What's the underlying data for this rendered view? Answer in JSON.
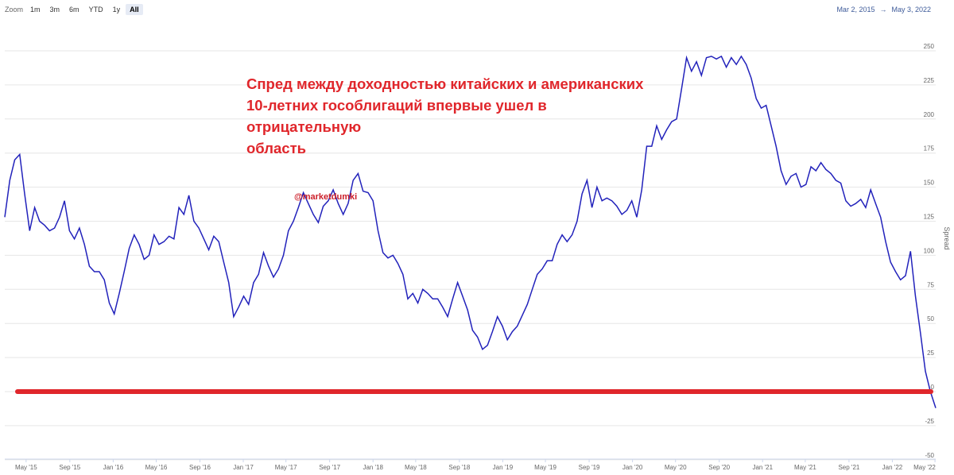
{
  "toolbar": {
    "zoom_label": "Zoom",
    "buttons": [
      "1m",
      "3m",
      "6m",
      "YTD",
      "1y",
      "All"
    ],
    "active": "All"
  },
  "range": {
    "from": "Mar 2, 2015",
    "arrow": "→",
    "to": "May 3, 2022"
  },
  "annotation": {
    "headline_lines": [
      "Спред между доходностью китайских и американских",
      "10-летних гособлигаций впервые ушел в отрицательную",
      "область"
    ],
    "watermark": "@marketdumki"
  },
  "colors": {
    "series": "#2222bb",
    "zero_line": "#e0262b",
    "headline": "#e0262b",
    "range_text": "#3d5a99"
  },
  "chart_data": {
    "type": "line",
    "ylabel": "Spread",
    "ylim": [
      -50,
      260
    ],
    "yticks": [
      -50,
      -25,
      0,
      25,
      50,
      75,
      100,
      125,
      150,
      175,
      200,
      225,
      250
    ],
    "x_start": "2015-03-02",
    "x_end": "2022-05-03",
    "xticks": [
      {
        "date": "2015-05-01",
        "label": "May '15"
      },
      {
        "date": "2015-09-01",
        "label": "Sep '15"
      },
      {
        "date": "2016-01-01",
        "label": "Jan '16"
      },
      {
        "date": "2016-05-01",
        "label": "May '16"
      },
      {
        "date": "2016-09-01",
        "label": "Sep '16"
      },
      {
        "date": "2017-01-01",
        "label": "Jan '17"
      },
      {
        "date": "2017-05-01",
        "label": "May '17"
      },
      {
        "date": "2017-09-01",
        "label": "Sep '17"
      },
      {
        "date": "2018-01-01",
        "label": "Jan '18"
      },
      {
        "date": "2018-05-01",
        "label": "May '18"
      },
      {
        "date": "2018-09-01",
        "label": "Sep '18"
      },
      {
        "date": "2019-01-01",
        "label": "Jan '19"
      },
      {
        "date": "2019-05-01",
        "label": "May '19"
      },
      {
        "date": "2019-09-01",
        "label": "Sep '19"
      },
      {
        "date": "2020-01-01",
        "label": "Jan '20"
      },
      {
        "date": "2020-05-01",
        "label": "May '20"
      },
      {
        "date": "2020-09-01",
        "label": "Sep '20"
      },
      {
        "date": "2021-01-01",
        "label": "Jan '21"
      },
      {
        "date": "2021-05-01",
        "label": "May '21"
      },
      {
        "date": "2021-09-01",
        "label": "Sep '21"
      },
      {
        "date": "2022-01-01",
        "label": "Jan '22"
      },
      {
        "date": "2022-05-01",
        "label": "May '22"
      }
    ],
    "reference_line": {
      "y": 0
    },
    "series": [
      {
        "points": [
          [
            "2015-03-02",
            128
          ],
          [
            "2015-03-16",
            155
          ],
          [
            "2015-03-30",
            170
          ],
          [
            "2015-04-13",
            174
          ],
          [
            "2015-04-27",
            145
          ],
          [
            "2015-05-11",
            118
          ],
          [
            "2015-05-25",
            135
          ],
          [
            "2015-06-08",
            125
          ],
          [
            "2015-06-22",
            122
          ],
          [
            "2015-07-06",
            118
          ],
          [
            "2015-07-20",
            120
          ],
          [
            "2015-08-03",
            128
          ],
          [
            "2015-08-17",
            140
          ],
          [
            "2015-08-31",
            118
          ],
          [
            "2015-09-14",
            112
          ],
          [
            "2015-09-28",
            120
          ],
          [
            "2015-10-12",
            108
          ],
          [
            "2015-10-26",
            92
          ],
          [
            "2015-11-09",
            88
          ],
          [
            "2015-11-23",
            88
          ],
          [
            "2015-12-07",
            82
          ],
          [
            "2015-12-21",
            65
          ],
          [
            "2016-01-04",
            57
          ],
          [
            "2016-01-18",
            72
          ],
          [
            "2016-02-01",
            88
          ],
          [
            "2016-02-15",
            105
          ],
          [
            "2016-02-29",
            115
          ],
          [
            "2016-03-14",
            108
          ],
          [
            "2016-03-28",
            97
          ],
          [
            "2016-04-11",
            100
          ],
          [
            "2016-04-25",
            115
          ],
          [
            "2016-05-09",
            108
          ],
          [
            "2016-05-23",
            110
          ],
          [
            "2016-06-06",
            114
          ],
          [
            "2016-06-20",
            112
          ],
          [
            "2016-07-04",
            135
          ],
          [
            "2016-07-18",
            130
          ],
          [
            "2016-08-01",
            144
          ],
          [
            "2016-08-15",
            125
          ],
          [
            "2016-08-29",
            120
          ],
          [
            "2016-09-12",
            112
          ],
          [
            "2016-09-26",
            104
          ],
          [
            "2016-10-10",
            114
          ],
          [
            "2016-10-24",
            110
          ],
          [
            "2016-11-07",
            95
          ],
          [
            "2016-11-21",
            80
          ],
          [
            "2016-12-05",
            55
          ],
          [
            "2016-12-19",
            62
          ],
          [
            "2017-01-02",
            70
          ],
          [
            "2017-01-16",
            64
          ],
          [
            "2017-01-30",
            80
          ],
          [
            "2017-02-13",
            86
          ],
          [
            "2017-02-27",
            102
          ],
          [
            "2017-03-13",
            92
          ],
          [
            "2017-03-27",
            84
          ],
          [
            "2017-04-10",
            90
          ],
          [
            "2017-04-24",
            100
          ],
          [
            "2017-05-08",
            118
          ],
          [
            "2017-05-22",
            125
          ],
          [
            "2017-06-05",
            135
          ],
          [
            "2017-06-19",
            146
          ],
          [
            "2017-07-03",
            138
          ],
          [
            "2017-07-17",
            130
          ],
          [
            "2017-07-31",
            124
          ],
          [
            "2017-08-14",
            136
          ],
          [
            "2017-08-28",
            140
          ],
          [
            "2017-09-11",
            148
          ],
          [
            "2017-09-25",
            138
          ],
          [
            "2017-10-09",
            130
          ],
          [
            "2017-10-23",
            138
          ],
          [
            "2017-11-06",
            155
          ],
          [
            "2017-11-20",
            160
          ],
          [
            "2017-12-04",
            147
          ],
          [
            "2017-12-18",
            146
          ],
          [
            "2018-01-01",
            140
          ],
          [
            "2018-01-15",
            118
          ],
          [
            "2018-01-29",
            102
          ],
          [
            "2018-02-12",
            98
          ],
          [
            "2018-02-26",
            100
          ],
          [
            "2018-03-12",
            94
          ],
          [
            "2018-03-26",
            86
          ],
          [
            "2018-04-09",
            68
          ],
          [
            "2018-04-23",
            72
          ],
          [
            "2018-05-07",
            65
          ],
          [
            "2018-05-21",
            75
          ],
          [
            "2018-06-04",
            72
          ],
          [
            "2018-06-18",
            68
          ],
          [
            "2018-07-02",
            68
          ],
          [
            "2018-07-16",
            62
          ],
          [
            "2018-07-30",
            55
          ],
          [
            "2018-08-13",
            68
          ],
          [
            "2018-08-27",
            80
          ],
          [
            "2018-09-10",
            70
          ],
          [
            "2018-09-24",
            60
          ],
          [
            "2018-10-08",
            45
          ],
          [
            "2018-10-22",
            40
          ],
          [
            "2018-11-05",
            31
          ],
          [
            "2018-11-19",
            34
          ],
          [
            "2018-12-03",
            44
          ],
          [
            "2018-12-17",
            55
          ],
          [
            "2018-12-31",
            48
          ],
          [
            "2019-01-14",
            38
          ],
          [
            "2019-01-28",
            44
          ],
          [
            "2019-02-11",
            48
          ],
          [
            "2019-02-25",
            56
          ],
          [
            "2019-03-11",
            64
          ],
          [
            "2019-03-25",
            75
          ],
          [
            "2019-04-08",
            86
          ],
          [
            "2019-04-22",
            90
          ],
          [
            "2019-05-06",
            96
          ],
          [
            "2019-05-20",
            96
          ],
          [
            "2019-06-03",
            108
          ],
          [
            "2019-06-17",
            115
          ],
          [
            "2019-07-01",
            110
          ],
          [
            "2019-07-15",
            115
          ],
          [
            "2019-07-29",
            125
          ],
          [
            "2019-08-12",
            145
          ],
          [
            "2019-08-26",
            155
          ],
          [
            "2019-09-09",
            135
          ],
          [
            "2019-09-23",
            150
          ],
          [
            "2019-10-07",
            140
          ],
          [
            "2019-10-21",
            142
          ],
          [
            "2019-11-04",
            140
          ],
          [
            "2019-11-18",
            136
          ],
          [
            "2019-12-02",
            130
          ],
          [
            "2019-12-16",
            133
          ],
          [
            "2019-12-30",
            140
          ],
          [
            "2020-01-13",
            128
          ],
          [
            "2020-01-27",
            148
          ],
          [
            "2020-02-10",
            180
          ],
          [
            "2020-02-24",
            180
          ],
          [
            "2020-03-09",
            195
          ],
          [
            "2020-03-23",
            185
          ],
          [
            "2020-04-06",
            192
          ],
          [
            "2020-04-20",
            198
          ],
          [
            "2020-05-04",
            200
          ],
          [
            "2020-05-18",
            222
          ],
          [
            "2020-06-01",
            245
          ],
          [
            "2020-06-15",
            235
          ],
          [
            "2020-06-29",
            242
          ],
          [
            "2020-07-13",
            232
          ],
          [
            "2020-07-27",
            245
          ],
          [
            "2020-08-10",
            246
          ],
          [
            "2020-08-24",
            244
          ],
          [
            "2020-09-07",
            246
          ],
          [
            "2020-09-21",
            238
          ],
          [
            "2020-10-05",
            245
          ],
          [
            "2020-10-19",
            240
          ],
          [
            "2020-11-02",
            246
          ],
          [
            "2020-11-16",
            240
          ],
          [
            "2020-11-30",
            230
          ],
          [
            "2020-12-14",
            215
          ],
          [
            "2020-12-28",
            208
          ],
          [
            "2021-01-11",
            210
          ],
          [
            "2021-01-25",
            195
          ],
          [
            "2021-02-08",
            180
          ],
          [
            "2021-02-22",
            162
          ],
          [
            "2021-03-08",
            152
          ],
          [
            "2021-03-22",
            158
          ],
          [
            "2021-04-05",
            160
          ],
          [
            "2021-04-19",
            150
          ],
          [
            "2021-05-03",
            152
          ],
          [
            "2021-05-17",
            165
          ],
          [
            "2021-05-31",
            162
          ],
          [
            "2021-06-14",
            168
          ],
          [
            "2021-06-28",
            163
          ],
          [
            "2021-07-12",
            160
          ],
          [
            "2021-07-26",
            155
          ],
          [
            "2021-08-09",
            153
          ],
          [
            "2021-08-23",
            140
          ],
          [
            "2021-09-06",
            136
          ],
          [
            "2021-09-20",
            138
          ],
          [
            "2021-10-04",
            141
          ],
          [
            "2021-10-18",
            135
          ],
          [
            "2021-11-01",
            148
          ],
          [
            "2021-11-15",
            138
          ],
          [
            "2021-11-29",
            128
          ],
          [
            "2021-12-13",
            110
          ],
          [
            "2021-12-27",
            95
          ],
          [
            "2022-01-10",
            88
          ],
          [
            "2022-01-24",
            82
          ],
          [
            "2022-02-07",
            85
          ],
          [
            "2022-02-21",
            103
          ],
          [
            "2022-03-07",
            70
          ],
          [
            "2022-03-21",
            43
          ],
          [
            "2022-04-04",
            15
          ],
          [
            "2022-04-18",
            0
          ],
          [
            "2022-05-03",
            -12
          ]
        ]
      }
    ]
  }
}
